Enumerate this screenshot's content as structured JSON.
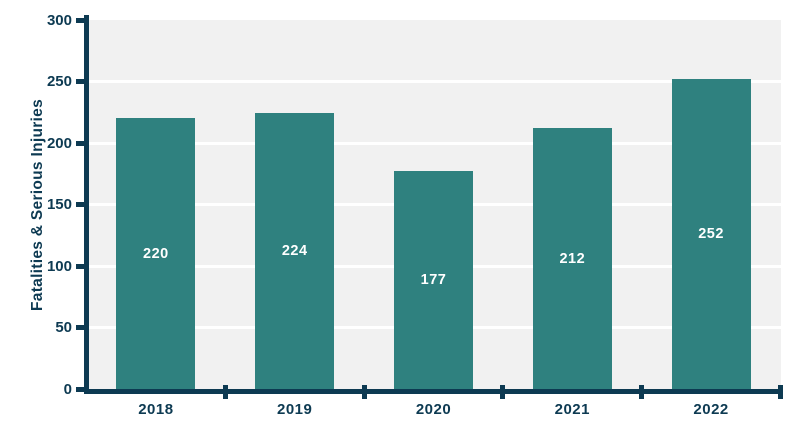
{
  "colors": {
    "bar": "#2f817f",
    "axis": "#0d3a52",
    "plot_background": "#f1f1f1",
    "gridline": "#ffffff",
    "bar_label_text": "#ffffff",
    "canvas_background": "#ffffff"
  },
  "chart_data": {
    "type": "bar",
    "categories": [
      "2018",
      "2019",
      "2020",
      "2021",
      "2022"
    ],
    "values": [
      220,
      224,
      177,
      212,
      252
    ],
    "title": "",
    "xlabel": "",
    "ylabel": "Fatalities & Serious Injuries",
    "ylim": [
      0,
      300
    ],
    "yticks": [
      0,
      50,
      100,
      150,
      200,
      250,
      300
    ],
    "grid": true,
    "gridline_orientation": "horizontal",
    "legend_position": "none",
    "bar_value_labels": true,
    "bar_value_label_position": "inside-center"
  }
}
